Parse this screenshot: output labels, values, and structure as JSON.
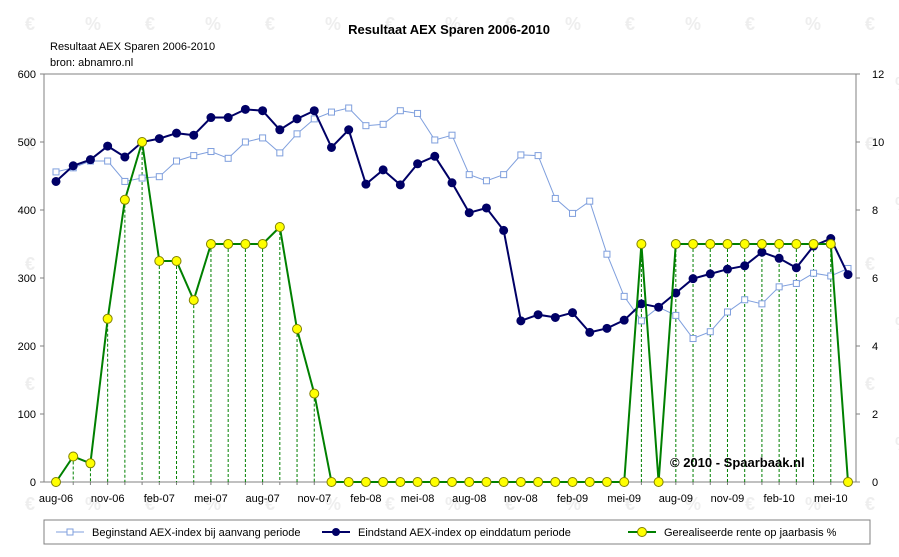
{
  "chart_data": {
    "type": "line",
    "title": "Resultaat AEX Sparen 2006-2010",
    "subtitle_lines": [
      "Resultaat AEX Sparen 2006-2010",
      "bron: abnamro.nl"
    ],
    "watermark_text": "© 2010 - Spaarbaak.nl",
    "categories": [
      "aug-06",
      "sep-06",
      "okt-06",
      "nov-06",
      "dec-06",
      "jan-07",
      "feb-07",
      "mrt-07",
      "apr-07",
      "mei-07",
      "jun-07",
      "jul-07",
      "aug-07",
      "sep-07",
      "okt-07",
      "nov-07",
      "dec-07",
      "jan-08",
      "feb-08",
      "mrt-08",
      "apr-08",
      "mei-08",
      "jun-08",
      "jul-08",
      "aug-08",
      "sep-08",
      "okt-08",
      "nov-08",
      "dec-08",
      "jan-09",
      "feb-09",
      "mrt-09",
      "apr-09",
      "mei-09",
      "jun-09",
      "jul-09",
      "aug-09",
      "sep-09",
      "okt-09",
      "nov-09",
      "dec-09",
      "jan-10",
      "feb-10",
      "mrt-10",
      "apr-10",
      "mei-10",
      "jun-10"
    ],
    "x_tick_labels": [
      "aug-06",
      "nov-06",
      "feb-07",
      "mei-07",
      "aug-07",
      "nov-07",
      "feb-08",
      "mei-08",
      "aug-08",
      "nov-08",
      "feb-09",
      "mei-09",
      "aug-09",
      "nov-09",
      "feb-10",
      "mei-10"
    ],
    "x_tick_every": 3,
    "y_left": {
      "min": 0,
      "max": 600,
      "step": 100
    },
    "y_right": {
      "min": 0,
      "max": 12,
      "step": 2
    },
    "grid": "off",
    "legend_position": "bottom",
    "series": [
      {
        "name": "Beginstand AEX-index bij aanvang periode",
        "axis": "left",
        "color": "#7f9fdd",
        "marker": "square-hollow",
        "values": [
          456,
          462,
          472,
          472,
          442,
          447,
          449,
          472,
          480,
          486,
          476,
          500,
          506,
          484,
          512,
          534,
          544,
          550,
          524,
          526,
          546,
          542,
          503,
          510,
          452,
          443,
          452,
          481,
          480,
          417,
          395,
          413,
          335,
          273,
          237,
          257,
          245,
          211,
          221,
          250,
          268,
          262,
          287,
          292,
          307,
          303,
          314
        ]
      },
      {
        "name": "Eindstand AEX-index op einddatum periode",
        "axis": "left",
        "color": "#000066",
        "marker": "circle-filled",
        "values": [
          442,
          465,
          474,
          494,
          478,
          500,
          505,
          513,
          510,
          536,
          536,
          548,
          546,
          518,
          534,
          546,
          492,
          518,
          438,
          459,
          437,
          468,
          479,
          440,
          396,
          403,
          370,
          237,
          246,
          242,
          249,
          220,
          226,
          238,
          262,
          257,
          278,
          299,
          306,
          313,
          318,
          338,
          329,
          315,
          347,
          358,
          305
        ]
      },
      {
        "name": "Gerealiseerde rente op jaarbasis %",
        "axis": "right",
        "color": "#008000",
        "marker": "circle-yellow",
        "values": [
          0,
          0.75,
          0.55,
          4.8,
          8.3,
          10,
          6.5,
          6.5,
          5.35,
          7,
          7,
          7,
          7,
          7.5,
          4.5,
          2.6,
          0,
          0,
          0,
          0,
          0,
          0,
          0,
          0,
          0,
          0,
          0,
          0,
          0,
          0,
          0,
          0,
          0,
          0,
          7,
          0,
          7,
          7,
          7,
          7,
          7,
          7,
          7,
          7,
          7,
          7,
          0
        ]
      }
    ]
  }
}
